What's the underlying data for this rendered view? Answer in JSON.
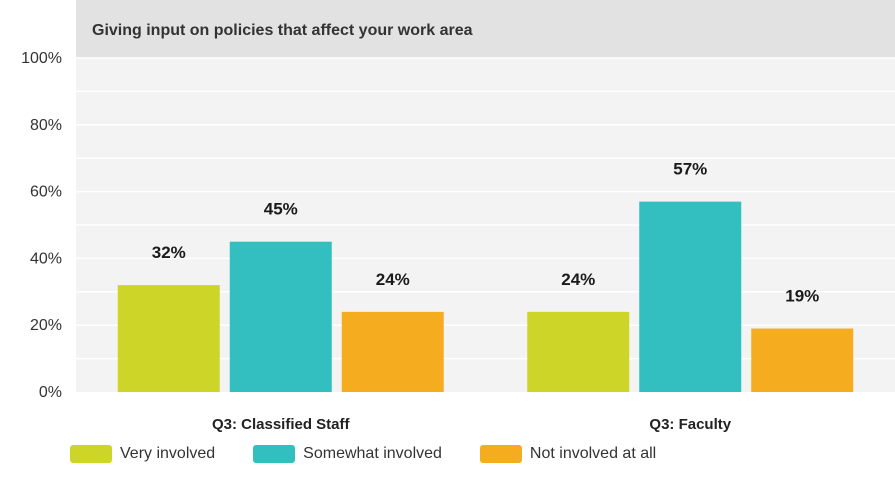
{
  "chart_data": {
    "type": "bar",
    "title": "Giving input on policies that affect your work area",
    "categories": [
      "Q3: Classified Staff",
      "Q3: Faculty"
    ],
    "series": [
      {
        "name": "Very involved",
        "values": [
          32,
          24
        ],
        "labels": [
          "32%",
          "24%"
        ],
        "color": "#cdd628"
      },
      {
        "name": "Somewhat involved",
        "values": [
          45,
          57
        ],
        "labels": [
          "45%",
          "57%"
        ],
        "color": "#33bfbf"
      },
      {
        "name": "Not involved at all",
        "values": [
          24,
          19
        ],
        "labels": [
          "24%",
          "19%"
        ],
        "color": "#f5ad1f"
      }
    ],
    "ylim": [
      0,
      100
    ],
    "yticks": [
      "0%",
      "20%",
      "40%",
      "60%",
      "80%",
      "100%"
    ],
    "ytick_values": [
      0,
      20,
      40,
      60,
      80,
      100
    ],
    "grid": true,
    "legend_position": "bottom-left"
  }
}
